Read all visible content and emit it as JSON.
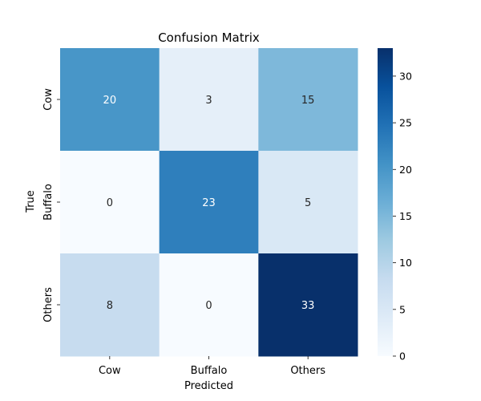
{
  "chart_data": {
    "type": "heatmap",
    "title": "Confusion Matrix",
    "xlabel": "Predicted",
    "ylabel": "True",
    "x_categories": [
      "Cow",
      "Buffalo",
      "Others"
    ],
    "y_categories": [
      "Cow",
      "Buffalo",
      "Others"
    ],
    "values": [
      [
        20,
        3,
        15
      ],
      [
        0,
        23,
        5
      ],
      [
        8,
        0,
        33
      ]
    ],
    "colorbar": {
      "range": [
        0,
        33
      ],
      "ticks": [
        0,
        5,
        10,
        15,
        20,
        25,
        30
      ],
      "colormap": "Blues"
    },
    "text_colors": {
      "light": "#ffffff",
      "dark": "#262626"
    }
  }
}
